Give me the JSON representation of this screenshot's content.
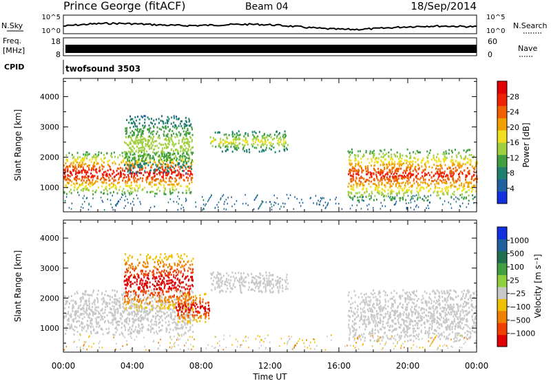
{
  "header": {
    "station": "Prince George (fitACF)",
    "beam": "Beam 04",
    "date": "18/Sep/2014"
  },
  "top_panels": {
    "nsky": {
      "label": "N.Sky",
      "ticks": [
        "10^5",
        "10^0"
      ]
    },
    "nsearch": {
      "label": "N.Search",
      "ticks": [
        "10^5",
        "10^0"
      ]
    },
    "freq": {
      "label_line1": "Freq.",
      "label_line2": "[MHz]",
      "ticks": [
        "18",
        "8"
      ]
    },
    "nave": {
      "label": "Nave",
      "ticks": [
        "60",
        "0"
      ]
    },
    "cpid": {
      "label": "CPID",
      "program": "twofsound 3503"
    }
  },
  "colors": {
    "power_scale": [
      "#1030e0",
      "#2060a0",
      "#208070",
      "#40a040",
      "#a0d040",
      "#f0e020",
      "#f0a000",
      "#f06000",
      "#f02000",
      "#e00000"
    ],
    "velocity_scale": [
      "#1030e0",
      "#2060a0",
      "#207050",
      "#40a040",
      "#90d040",
      "#c8c8c8",
      "#f0c000",
      "#f08000",
      "#f04000",
      "#e00000"
    ],
    "ground_scatter": "#c8c8c8"
  },
  "chart_data": [
    {
      "type": "heatmap",
      "title": "Power",
      "xlabel": "Time UT",
      "ylabel": "Slant Range [km]",
      "x_ticks": [
        "00:00",
        "04:00",
        "08:00",
        "12:00",
        "16:00",
        "20:00",
        "00:00"
      ],
      "y_ticks": [
        "1000",
        "2000",
        "3000",
        "4000"
      ],
      "ylim": [
        200,
        4600
      ],
      "colorbar": {
        "label": "Power [dB]",
        "ticks": [
          "4",
          "8",
          "12",
          "16",
          "20",
          "24",
          "28"
        ],
        "range": [
          0,
          32
        ]
      },
      "regions": [
        {
          "t_start": 0.0,
          "t_end": 7.5,
          "range_min": 800,
          "range_max": 2200,
          "power": 28
        },
        {
          "t_start": 3.5,
          "t_end": 7.5,
          "range_min": 1500,
          "range_max": 3400,
          "power": 14
        },
        {
          "t_start": 8.5,
          "t_end": 13.0,
          "range_min": 2200,
          "range_max": 2900,
          "power": 16
        },
        {
          "t_start": 16.5,
          "t_end": 24.0,
          "range_min": 600,
          "range_max": 2300,
          "power": 26
        }
      ]
    },
    {
      "type": "heatmap",
      "title": "Velocity",
      "xlabel": "Time UT",
      "ylabel": "Slant Range [km]",
      "x_ticks": [
        "00:00",
        "04:00",
        "08:00",
        "12:00",
        "16:00",
        "20:00",
        "00:00"
      ],
      "y_ticks": [
        "1000",
        "2000",
        "3000",
        "4000"
      ],
      "ylim": [
        200,
        4600
      ],
      "colorbar": {
        "label": "Velocity [m s⁻¹]",
        "ticks": [
          "1000",
          "500",
          "100",
          "25",
          "−25",
          "−100",
          "−500",
          "−1000"
        ],
        "range": [
          -1000,
          1000
        ]
      },
      "regions": [
        {
          "t_start": 0.0,
          "t_end": 7.5,
          "range_min": 800,
          "range_max": 2300,
          "velocity": "ground scatter"
        },
        {
          "t_start": 3.5,
          "t_end": 7.5,
          "range_min": 1600,
          "range_max": 3500,
          "velocity": -500
        },
        {
          "t_start": 6.5,
          "t_end": 8.5,
          "range_min": 1200,
          "range_max": 2200,
          "velocity": -500
        },
        {
          "t_start": 8.5,
          "t_end": 13.0,
          "range_min": 2200,
          "range_max": 2900,
          "velocity": "ground scatter"
        },
        {
          "t_start": 16.5,
          "t_end": 24.0,
          "range_min": 600,
          "range_max": 2300,
          "velocity": "ground scatter"
        }
      ]
    }
  ]
}
